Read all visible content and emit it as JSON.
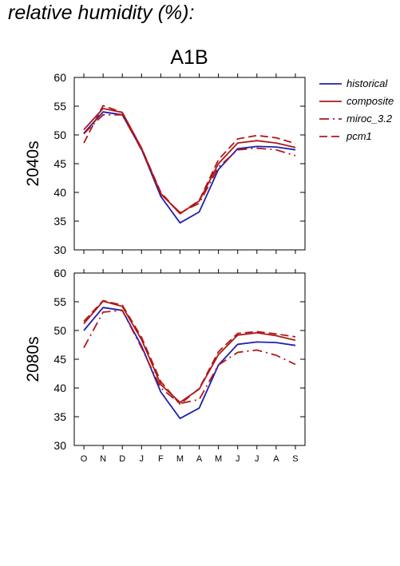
{
  "page": {
    "title": "relative humidity (%):"
  },
  "chart_data": {
    "type": "line",
    "title": "A1B",
    "categories": [
      "O",
      "N",
      "D",
      "J",
      "F",
      "M",
      "A",
      "M",
      "J",
      "J",
      "A",
      "S"
    ],
    "ylim": [
      30,
      60
    ],
    "yticks": [
      30,
      35,
      40,
      45,
      50,
      55,
      60
    ],
    "legend": {
      "placement": "right"
    },
    "series_styles": [
      {
        "name": "historical",
        "color": "#2020b0",
        "dash": ""
      },
      {
        "name": "composite",
        "color": "#b01818",
        "dash": ""
      },
      {
        "name": "miroc_3.2",
        "color": "#b01818",
        "dash": "12 5 2 5"
      },
      {
        "name": "pcm1",
        "color": "#b01818",
        "dash": "10 5"
      }
    ],
    "panels": [
      {
        "label": "2040s",
        "series": [
          {
            "name": "historical",
            "values": [
              50.3,
              54.0,
              53.5,
              47.5,
              39.3,
              34.7,
              36.6,
              44.0,
              47.6,
              48.0,
              47.9,
              47.4
            ]
          },
          {
            "name": "composite",
            "values": [
              50.9,
              54.6,
              53.9,
              47.7,
              39.8,
              36.3,
              38.5,
              45.0,
              48.6,
              49.0,
              48.6,
              47.8
            ]
          },
          {
            "name": "miroc_3.2",
            "values": [
              50.2,
              53.5,
              53.5,
              47.4,
              39.7,
              36.5,
              38.1,
              44.4,
              47.4,
              47.7,
              47.4,
              46.4
            ]
          },
          {
            "name": "pcm1",
            "values": [
              48.6,
              55.1,
              53.9,
              47.7,
              40.0,
              36.3,
              38.6,
              45.7,
              49.3,
              49.9,
              49.5,
              48.5
            ]
          }
        ]
      },
      {
        "label": "2080s",
        "series": [
          {
            "name": "historical",
            "values": [
              50.0,
              54.0,
              53.5,
              47.3,
              39.3,
              34.7,
              36.5,
              44.0,
              47.6,
              48.0,
              47.9,
              47.4
            ]
          },
          {
            "name": "composite",
            "values": [
              51.2,
              55.1,
              54.2,
              48.4,
              40.6,
              37.5,
              39.8,
              45.8,
              49.2,
              49.6,
              49.1,
              48.3
            ]
          },
          {
            "name": "miroc_3.2",
            "values": [
              47.0,
              53.2,
              53.5,
              47.0,
              40.0,
              37.3,
              38.0,
              44.0,
              46.2,
              46.6,
              45.7,
              44.1
            ]
          },
          {
            "name": "pcm1",
            "values": [
              51.6,
              55.2,
              54.4,
              48.8,
              41.1,
              37.2,
              39.9,
              46.3,
              49.5,
              49.8,
              49.4,
              48.9
            ]
          }
        ]
      }
    ]
  }
}
